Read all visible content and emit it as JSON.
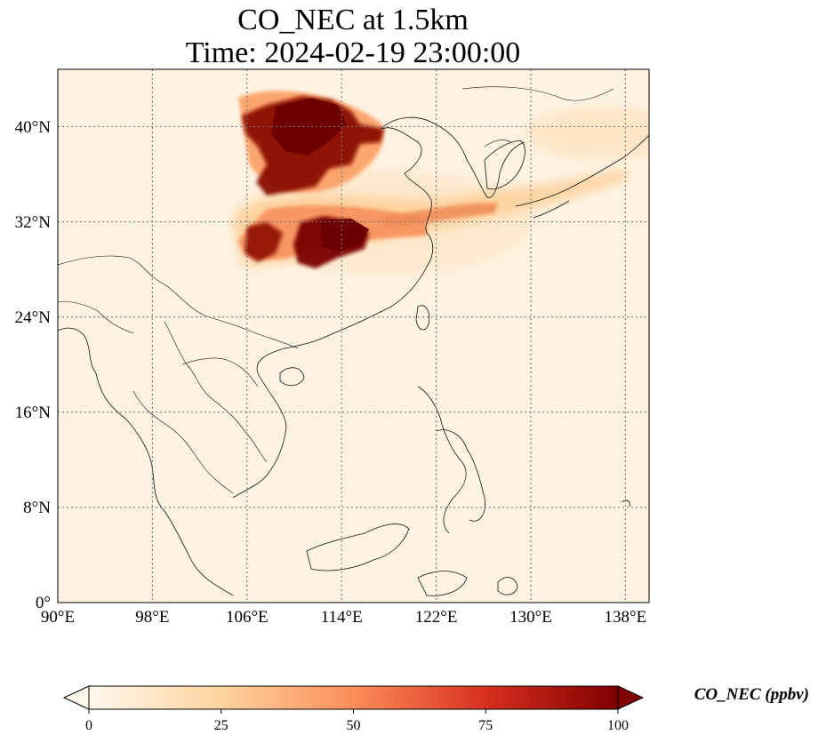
{
  "map": {
    "title_line1": "CO_NEC at 1.5km",
    "title_line2": "Time: 2024-02-19 23:00:00",
    "projection": "PlateCarree",
    "lon_range": [
      90,
      140
    ],
    "lat_range": [
      0,
      44
    ],
    "x_ticks": [
      {
        "value": 90,
        "label": "90°E"
      },
      {
        "value": 98,
        "label": "98°E"
      },
      {
        "value": 106,
        "label": "106°E"
      },
      {
        "value": 114,
        "label": "114°E"
      },
      {
        "value": 122,
        "label": "122°E"
      },
      {
        "value": 130,
        "label": "130°E"
      },
      {
        "value": 138,
        "label": "138°E"
      }
    ],
    "y_ticks": [
      {
        "value": 0,
        "label": "0°"
      },
      {
        "value": 8,
        "label": "8°N"
      },
      {
        "value": 16,
        "label": "16°N"
      },
      {
        "value": 24,
        "label": "24°N"
      },
      {
        "value": 32,
        "label": "32°N"
      },
      {
        "value": 40,
        "label": "40°N"
      }
    ],
    "gridlines": "dotted",
    "field_description": "high concentrations (~100 ppbv) over north-central China near 106-116E, 29-42N, with a plume extending east over the Yellow Sea, Korea and Japan; low background elsewhere"
  },
  "colorbar": {
    "label": "CO_NEC (ppbv)",
    "colormap": "OrRd",
    "range": [
      0,
      100
    ],
    "extend": "both",
    "ticks": [
      {
        "value": 0,
        "label": "0"
      },
      {
        "value": 25,
        "label": "25"
      },
      {
        "value": 50,
        "label": "50"
      },
      {
        "value": 75,
        "label": "75"
      },
      {
        "value": 100,
        "label": "100"
      }
    ],
    "colors": [
      "#fff7ec",
      "#fdd49e",
      "#fc8d59",
      "#d7301f",
      "#7f0000"
    ]
  }
}
